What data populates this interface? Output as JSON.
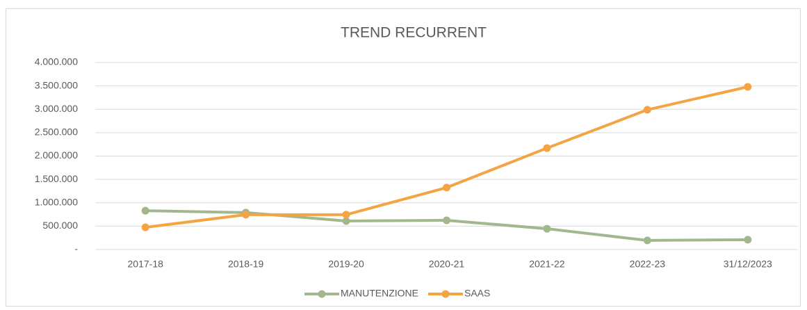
{
  "chart_data": {
    "type": "line",
    "title": "TREND RECURRENT",
    "categories": [
      "2017-18",
      "2018-19",
      "2019-20",
      "2020-21",
      "2021-22",
      "2022-23",
      "31/12/2023"
    ],
    "series": [
      {
        "name": "MANUTENZIONE",
        "color": "#a2b78c",
        "values": [
          830000,
          790000,
          610000,
          625000,
          445000,
          195000,
          210000
        ]
      },
      {
        "name": "SAAS",
        "color": "#f4a443",
        "values": [
          475000,
          745000,
          745000,
          1325000,
          2170000,
          2990000,
          3480000
        ]
      }
    ],
    "ylim": [
      0,
      4000000
    ],
    "yticks": [
      {
        "value": 0,
        "label": "-"
      },
      {
        "value": 500000,
        "label": "500.000"
      },
      {
        "value": 1000000,
        "label": "1.000.000"
      },
      {
        "value": 1500000,
        "label": "1.500.000"
      },
      {
        "value": 2000000,
        "label": "2.000.000"
      },
      {
        "value": 2500000,
        "label": "2.500.000"
      },
      {
        "value": 3000000,
        "label": "3.000.000"
      },
      {
        "value": 3500000,
        "label": "3.500.000"
      },
      {
        "value": 4000000,
        "label": "4.000.000"
      }
    ],
    "grid": true,
    "legend": "bottom"
  }
}
